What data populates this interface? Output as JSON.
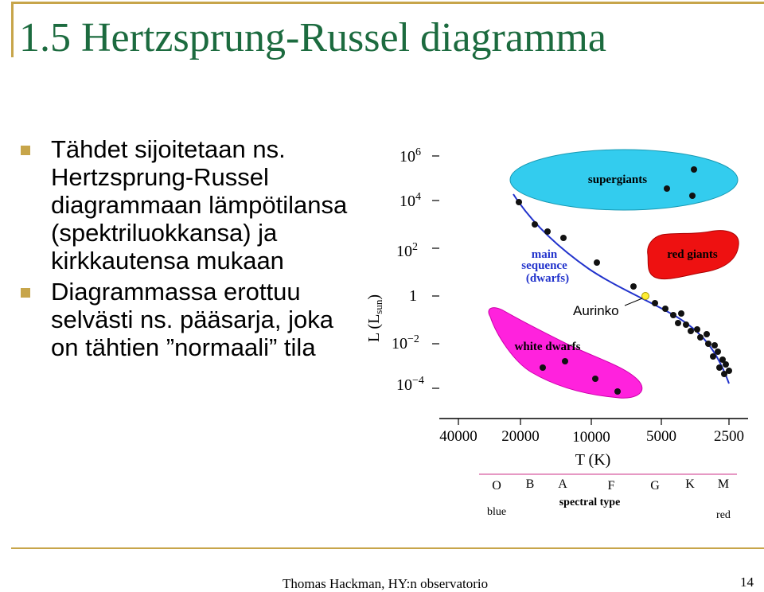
{
  "slide": {
    "title": "1.5 Hertzsprung-Russel diagramma",
    "bullets": [
      "Tähdet sijoitetaan ns. Hertzsprung-Russel diagrammaan lämpötilansa (spektriluokkansa) ja kirkkautensa mukaan",
      "Diagrammassa erottuu selvästi ns. pääsarja, joka on tähtien ”normaali” tila"
    ],
    "footer": "Thomas Hackman, HY:n observatorio",
    "page_number": "14"
  },
  "diagram": {
    "y_axis_label": "L (L",
    "y_axis_label_sub": "sun",
    "y_axis_label_close": ")",
    "y_ticks": [
      {
        "base": "10",
        "exp": "6"
      },
      {
        "base": "10",
        "exp": "4"
      },
      {
        "base": "10",
        "exp": "2"
      },
      {
        "base": "1",
        "exp": ""
      },
      {
        "base": "10",
        "exp": "−2"
      },
      {
        "base": "10",
        "exp": "−4"
      }
    ],
    "x_ticks": [
      "40000",
      "20000",
      "10000",
      "5000",
      "2500"
    ],
    "x_axis_label": "T (K)",
    "spectral_types": [
      "O",
      "B",
      "A",
      "F",
      "G",
      "K",
      "M"
    ],
    "spectral_label": "spectral type",
    "blue_label": "blue",
    "red_label": "red",
    "regions": {
      "supergiants": "supergiants",
      "red_giants": "red giants",
      "main_sequence": [
        "main",
        "sequence",
        "(dwarfs)"
      ],
      "white_dwarfs": "white dwarfs"
    },
    "sun_label": "Aurinko",
    "colors": {
      "supergiants": "#33ccee",
      "red_giants": "#ee1111",
      "white_dwarfs": "#ff22dd",
      "main_sequence_line": "#2233cc",
      "sun": "#ffee33",
      "axis": "#000000",
      "spectral_rule": "#cc3388"
    }
  }
}
